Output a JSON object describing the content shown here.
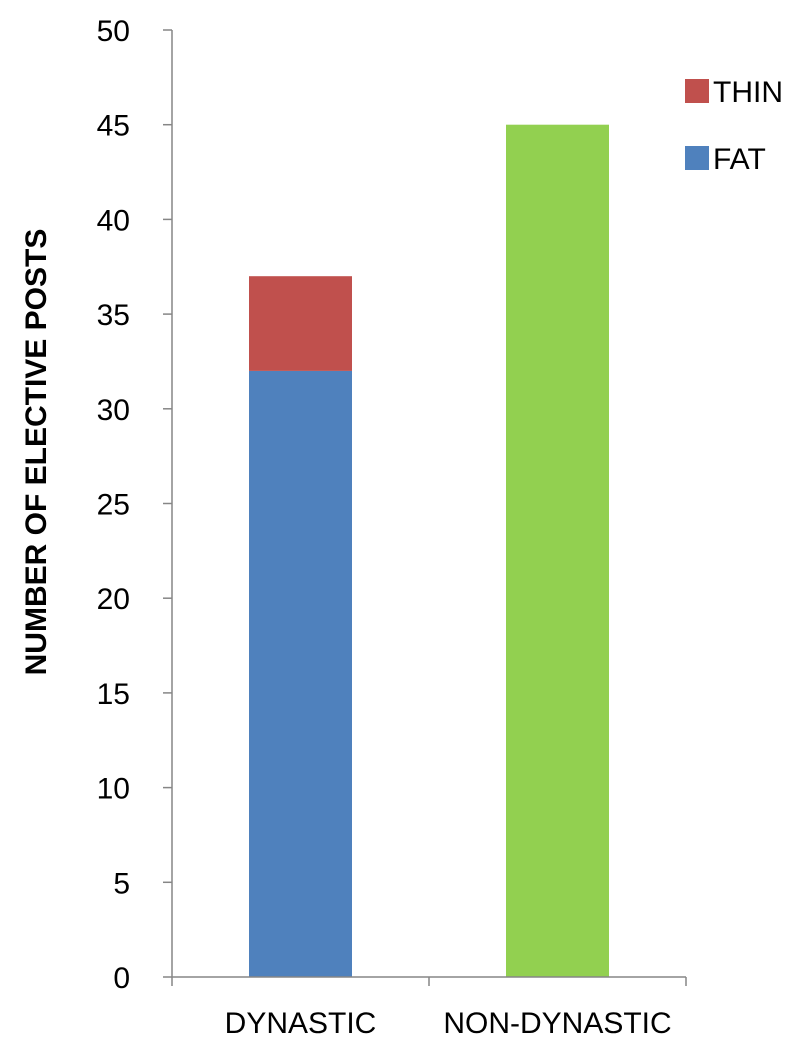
{
  "chart_data": {
    "type": "bar",
    "stacked": true,
    "title": "",
    "xlabel": "",
    "ylabel": "NUMBER OF ELECTIVE POSTS",
    "ylim": [
      0,
      50
    ],
    "yticks": [
      0,
      5,
      10,
      15,
      20,
      25,
      30,
      35,
      40,
      45,
      50
    ],
    "categories": [
      "DYNASTIC",
      "NON-DYNASTIC"
    ],
    "grid": false,
    "legend_position": "top-right",
    "series": [
      {
        "name": "FAT",
        "color": "#4f81bd",
        "values": [
          32,
          null
        ]
      },
      {
        "name": "THIN",
        "color": "#c0504d",
        "values": [
          5,
          null
        ]
      },
      {
        "color": "#92d050",
        "values": [
          null,
          45
        ]
      }
    ],
    "legend": [
      {
        "label": "THIN",
        "color": "#c0504d"
      },
      {
        "label": "FAT",
        "color": "#4f81bd"
      }
    ]
  }
}
